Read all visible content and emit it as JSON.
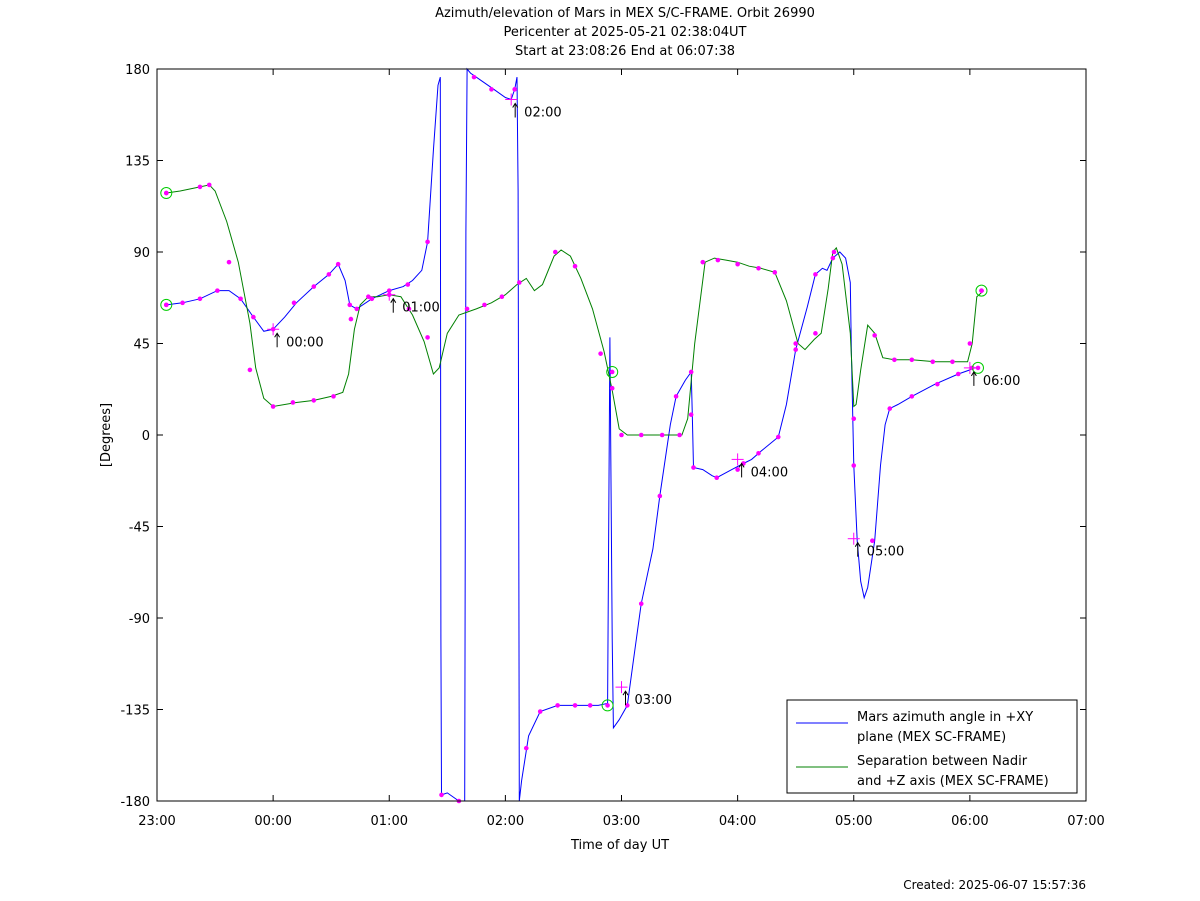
{
  "chart_data": {
    "type": "line",
    "title_lines": [
      "Azimuth/elevation of Mars in MEX S/C-FRAME.  Orbit 26990",
      "Pericenter at 2025-05-21 02:38:04UT",
      "Start at 23:08:26 End at 06:07:38"
    ],
    "xlabel": "Time of day UT",
    "ylabel": "[Degrees]",
    "xlim": [
      0,
      8
    ],
    "ylim": [
      -180,
      180
    ],
    "x_ticks": [
      0,
      1,
      2,
      3,
      4,
      5,
      6,
      7,
      8
    ],
    "x_tick_labels": [
      "23:00",
      "00:00",
      "01:00",
      "02:00",
      "03:00",
      "04:00",
      "05:00",
      "06:00",
      "07:00"
    ],
    "y_ticks": [
      180,
      135,
      90,
      45,
      0,
      -45,
      -90,
      -135,
      -180
    ],
    "y_tick_labels": [
      "180",
      "135",
      "90",
      "45",
      "0",
      "-45",
      "-90",
      "-135",
      "-180"
    ],
    "x_units": "hours after 23:00 UT",
    "series": [
      {
        "name": "Mars azimuth angle in +XY plane (MEX SC-FRAME)",
        "legend_lines": [
          "Mars azimuth angle in +XY",
          "plane (MEX SC-FRAME)"
        ],
        "color": "#0000ff",
        "points": [
          [
            0.08,
            64
          ],
          [
            0.22,
            65
          ],
          [
            0.37,
            67
          ],
          [
            0.52,
            71
          ],
          [
            0.62,
            71
          ],
          [
            0.72,
            67
          ],
          [
            0.83,
            58
          ],
          [
            0.92,
            51
          ],
          [
            1.0,
            52
          ],
          [
            1.1,
            58
          ],
          [
            1.2,
            65
          ],
          [
            1.35,
            73
          ],
          [
            1.48,
            79
          ],
          [
            1.56,
            84
          ],
          [
            1.62,
            76
          ],
          [
            1.66,
            64
          ],
          [
            1.72,
            62
          ],
          [
            1.85,
            67
          ],
          [
            2.0,
            71
          ],
          [
            2.12,
            73
          ],
          [
            2.2,
            76
          ],
          [
            2.28,
            81
          ],
          [
            2.33,
            95
          ],
          [
            2.38,
            140
          ],
          [
            2.42,
            172
          ],
          [
            2.44,
            176
          ],
          [
            2.445,
            -100
          ],
          [
            2.45,
            -177
          ],
          [
            2.5,
            -176
          ],
          [
            2.6,
            -180
          ],
          [
            2.65,
            -180
          ],
          [
            2.66,
            100
          ],
          [
            2.67,
            180
          ],
          [
            2.7,
            178
          ],
          [
            2.8,
            174
          ],
          [
            2.9,
            170
          ],
          [
            3.0,
            166
          ],
          [
            3.05,
            165
          ],
          [
            3.08,
            170
          ],
          [
            3.1,
            176
          ],
          [
            3.11,
            120
          ],
          [
            3.12,
            -180
          ],
          [
            3.14,
            -170
          ],
          [
            3.2,
            -148
          ],
          [
            3.3,
            -136
          ],
          [
            3.45,
            -133
          ],
          [
            3.6,
            -133
          ],
          [
            3.8,
            -133
          ],
          [
            3.88,
            -132
          ],
          [
            3.9,
            48
          ],
          [
            3.92,
            -100
          ],
          [
            3.93,
            -144
          ],
          [
            3.98,
            -140
          ],
          [
            4.05,
            -133
          ],
          [
            4.1,
            -112
          ],
          [
            4.17,
            -83
          ],
          [
            4.27,
            -56
          ],
          [
            4.33,
            -30
          ],
          [
            4.42,
            5
          ],
          [
            4.47,
            19
          ],
          [
            4.55,
            27
          ],
          [
            4.6,
            31
          ],
          [
            4.61,
            10
          ],
          [
            4.62,
            -16
          ],
          [
            4.7,
            -17
          ],
          [
            4.78,
            -20
          ],
          [
            4.82,
            -21
          ],
          [
            4.95,
            -17
          ],
          [
            5.05,
            -14
          ],
          [
            5.12,
            -12
          ],
          [
            5.2,
            -8
          ],
          [
            5.35,
            -1
          ],
          [
            5.42,
            15
          ],
          [
            5.5,
            42
          ],
          [
            5.6,
            63
          ],
          [
            5.67,
            79
          ],
          [
            5.73,
            82
          ],
          [
            5.77,
            81
          ],
          [
            5.82,
            87
          ],
          [
            5.88,
            90
          ],
          [
            5.93,
            87
          ],
          [
            5.97,
            75
          ],
          [
            5.98,
            40
          ],
          [
            6.0,
            -15
          ],
          [
            6.03,
            -52
          ],
          [
            6.06,
            -72
          ],
          [
            6.09,
            -80
          ],
          [
            6.12,
            -75
          ],
          [
            6.18,
            -52
          ],
          [
            6.23,
            -15
          ],
          [
            6.27,
            5
          ],
          [
            6.31,
            13
          ],
          [
            6.38,
            15
          ],
          [
            6.5,
            19
          ],
          [
            6.7,
            25
          ],
          [
            6.9,
            30
          ],
          [
            7.0,
            32
          ],
          [
            7.02,
            33
          ],
          [
            7.08,
            33
          ]
        ],
        "markers": [
          [
            0.08,
            64
          ],
          [
            0.22,
            65
          ],
          [
            0.37,
            67
          ],
          [
            0.52,
            71
          ],
          [
            0.72,
            67
          ],
          [
            0.83,
            58
          ],
          [
            1.0,
            52
          ],
          [
            1.18,
            65
          ],
          [
            1.35,
            73
          ],
          [
            1.48,
            79
          ],
          [
            1.56,
            84
          ],
          [
            1.66,
            64
          ],
          [
            1.72,
            62
          ],
          [
            1.85,
            67
          ],
          [
            2.0,
            71
          ],
          [
            2.16,
            74
          ],
          [
            2.33,
            95
          ],
          [
            2.45,
            -177
          ],
          [
            2.6,
            -180
          ],
          [
            2.73,
            176
          ],
          [
            2.88,
            170
          ],
          [
            3.08,
            170
          ],
          [
            3.18,
            -154
          ],
          [
            3.3,
            -136
          ],
          [
            3.45,
            -133
          ],
          [
            3.6,
            -133
          ],
          [
            3.73,
            -133
          ],
          [
            4.05,
            -133
          ],
          [
            4.17,
            -83
          ],
          [
            4.33,
            -30
          ],
          [
            4.47,
            19
          ],
          [
            4.6,
            31
          ],
          [
            4.62,
            -16
          ],
          [
            4.82,
            -21
          ],
          [
            5.0,
            -17
          ],
          [
            5.05,
            -14
          ],
          [
            5.18,
            -9
          ],
          [
            5.35,
            -1
          ],
          [
            5.5,
            42
          ],
          [
            5.67,
            79
          ],
          [
            5.82,
            87
          ],
          [
            6.0,
            -15
          ],
          [
            6.16,
            -52
          ],
          [
            6.31,
            13
          ],
          [
            6.5,
            19
          ],
          [
            6.72,
            25
          ],
          [
            6.9,
            30
          ],
          [
            7.02,
            33
          ]
        ],
        "hour_marks": [
          {
            "x": 1.0,
            "y": 52,
            "label": "00:00"
          },
          {
            "x": 3.05,
            "y": 165,
            "label": "02:00"
          },
          {
            "x": 4.0,
            "y": -124,
            "label": "03:00"
          },
          {
            "x": 5.0,
            "y": -12,
            "label": "04:00"
          },
          {
            "x": 6.0,
            "y": -51,
            "label": "05:00"
          },
          {
            "x": 7.0,
            "y": 33,
            "label": "06:00"
          }
        ],
        "end_circles": [
          [
            0.08,
            64
          ],
          [
            3.88,
            -133
          ],
          [
            7.07,
            33
          ]
        ]
      },
      {
        "name": "Separation between Nadir and +Z axis (MEX SC-FRAME)",
        "legend_lines": [
          "Separation between Nadir",
          "and +Z axis (MEX SC-FRAME)"
        ],
        "color": "#008000",
        "points": [
          [
            0.08,
            119
          ],
          [
            0.2,
            120
          ],
          [
            0.37,
            122
          ],
          [
            0.45,
            123
          ],
          [
            0.5,
            120
          ],
          [
            0.6,
            105
          ],
          [
            0.7,
            85
          ],
          [
            0.8,
            55
          ],
          [
            0.85,
            33
          ],
          [
            0.92,
            18
          ],
          [
            1.0,
            14
          ],
          [
            1.2,
            16
          ],
          [
            1.35,
            17
          ],
          [
            1.5,
            19
          ],
          [
            1.6,
            21
          ],
          [
            1.65,
            30
          ],
          [
            1.7,
            52
          ],
          [
            1.75,
            64
          ],
          [
            1.82,
            68
          ],
          [
            1.9,
            68
          ],
          [
            2.0,
            69
          ],
          [
            2.1,
            68
          ],
          [
            2.2,
            59
          ],
          [
            2.3,
            46
          ],
          [
            2.38,
            30
          ],
          [
            2.43,
            33
          ],
          [
            2.5,
            50
          ],
          [
            2.6,
            59
          ],
          [
            2.75,
            62
          ],
          [
            2.88,
            65
          ],
          [
            3.0,
            69
          ],
          [
            3.1,
            74
          ],
          [
            3.18,
            77
          ],
          [
            3.25,
            71
          ],
          [
            3.32,
            74
          ],
          [
            3.42,
            88
          ],
          [
            3.48,
            91
          ],
          [
            3.56,
            88
          ],
          [
            3.65,
            77
          ],
          [
            3.75,
            62
          ],
          [
            3.85,
            41
          ],
          [
            3.92,
            22
          ],
          [
            3.98,
            3
          ],
          [
            4.05,
            0
          ],
          [
            4.3,
            0
          ],
          [
            4.48,
            0
          ],
          [
            4.52,
            0
          ],
          [
            4.57,
            8
          ],
          [
            4.63,
            45
          ],
          [
            4.72,
            85
          ],
          [
            4.8,
            87
          ],
          [
            4.9,
            86
          ],
          [
            5.0,
            85
          ],
          [
            5.1,
            83
          ],
          [
            5.2,
            82
          ],
          [
            5.32,
            80
          ],
          [
            5.42,
            66
          ],
          [
            5.52,
            45
          ],
          [
            5.58,
            42
          ],
          [
            5.66,
            47
          ],
          [
            5.72,
            50
          ],
          [
            5.78,
            72
          ],
          [
            5.82,
            90
          ],
          [
            5.85,
            92
          ],
          [
            5.9,
            84
          ],
          [
            5.97,
            50
          ],
          [
            6.0,
            14
          ],
          [
            6.02,
            15
          ],
          [
            6.06,
            32
          ],
          [
            6.12,
            54
          ],
          [
            6.18,
            50
          ],
          [
            6.25,
            38
          ],
          [
            6.35,
            37
          ],
          [
            6.5,
            37
          ],
          [
            6.7,
            36
          ],
          [
            6.9,
            36
          ],
          [
            6.98,
            36
          ],
          [
            7.02,
            45
          ],
          [
            7.06,
            68
          ],
          [
            7.12,
            71
          ]
        ],
        "markers": [
          [
            0.08,
            119
          ],
          [
            0.37,
            122
          ],
          [
            0.45,
            123
          ],
          [
            0.62,
            85
          ],
          [
            0.8,
            32
          ],
          [
            1.0,
            14
          ],
          [
            1.17,
            16
          ],
          [
            1.35,
            17
          ],
          [
            1.52,
            19
          ],
          [
            1.67,
            57
          ],
          [
            1.82,
            68
          ],
          [
            2.0,
            69
          ],
          [
            2.17,
            62
          ],
          [
            2.33,
            48
          ],
          [
            2.67,
            62
          ],
          [
            2.82,
            64
          ],
          [
            2.97,
            68
          ],
          [
            3.12,
            75
          ],
          [
            3.43,
            90
          ],
          [
            3.6,
            83
          ],
          [
            3.82,
            40
          ],
          [
            3.92,
            23
          ],
          [
            4.0,
            0
          ],
          [
            4.17,
            0
          ],
          [
            4.35,
            0
          ],
          [
            4.5,
            0
          ],
          [
            4.6,
            10
          ],
          [
            4.7,
            85
          ],
          [
            4.83,
            86
          ],
          [
            5.0,
            84
          ],
          [
            5.18,
            82
          ],
          [
            5.32,
            80
          ],
          [
            5.5,
            45
          ],
          [
            5.67,
            50
          ],
          [
            5.83,
            90
          ],
          [
            6.0,
            8
          ],
          [
            6.18,
            49
          ],
          [
            6.35,
            37
          ],
          [
            6.5,
            37
          ],
          [
            6.68,
            36
          ],
          [
            6.85,
            36
          ],
          [
            7.0,
            45
          ],
          [
            7.1,
            71
          ]
        ],
        "hour_marks": [
          {
            "x": 2.0,
            "y": 69,
            "label": "01:00"
          }
        ],
        "end_circles": [
          [
            0.08,
            119
          ],
          [
            3.92,
            31
          ],
          [
            7.1,
            71
          ]
        ]
      }
    ],
    "legend_placement": "bottom-right",
    "grid": false,
    "marker_color": "#ff00ff"
  },
  "footer": {
    "created": "Created: 2025-06-07 15:57:36"
  }
}
